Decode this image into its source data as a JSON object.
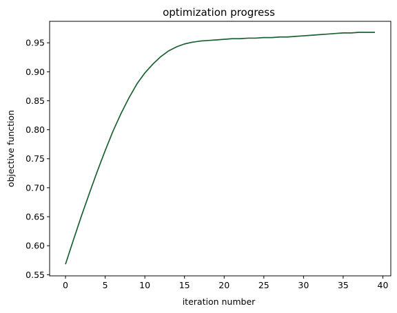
{
  "chart_data": {
    "type": "line",
    "title": "optimization progress",
    "xlabel": "iteration number",
    "ylabel": "objective function",
    "xlim": [
      -2,
      41
    ],
    "ylim": [
      0.548,
      0.987
    ],
    "xticks": [
      0,
      5,
      10,
      15,
      20,
      25,
      30,
      35,
      40
    ],
    "xtick_labels": [
      "0",
      "5",
      "10",
      "15",
      "20",
      "25",
      "30",
      "35",
      "40"
    ],
    "yticks": [
      0.55,
      0.6,
      0.65,
      0.7,
      0.75,
      0.8,
      0.85,
      0.9,
      0.95
    ],
    "ytick_labels": [
      "0.55",
      "0.60",
      "0.65",
      "0.70",
      "0.75",
      "0.80",
      "0.85",
      "0.90",
      "0.95"
    ],
    "grid": false,
    "series": [
      {
        "color": "#1a6030",
        "x": [
          0,
          1,
          2,
          3,
          4,
          5,
          6,
          7,
          8,
          9,
          10,
          11,
          12,
          13,
          14,
          15,
          16,
          17,
          18,
          19,
          20,
          21,
          22,
          23,
          24,
          25,
          26,
          27,
          28,
          29,
          30,
          31,
          32,
          33,
          34,
          35,
          36,
          37,
          38,
          39
        ],
        "y": [
          0.568,
          0.61,
          0.651,
          0.69,
          0.728,
          0.764,
          0.798,
          0.828,
          0.855,
          0.879,
          0.898,
          0.913,
          0.926,
          0.936,
          0.943,
          0.948,
          0.951,
          0.953,
          0.954,
          0.955,
          0.956,
          0.957,
          0.957,
          0.958,
          0.958,
          0.959,
          0.959,
          0.96,
          0.96,
          0.961,
          0.962,
          0.963,
          0.964,
          0.965,
          0.966,
          0.967,
          0.967,
          0.968,
          0.968,
          0.968
        ]
      }
    ]
  }
}
